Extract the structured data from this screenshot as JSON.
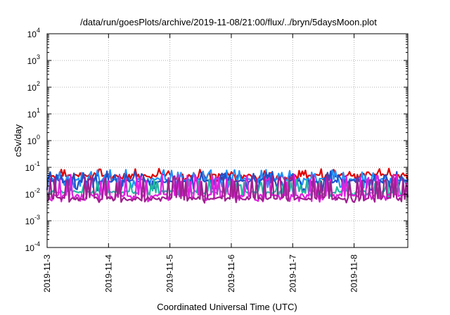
{
  "chart_data": {
    "type": "line",
    "title": "/data/run/goesPlots/archive/2019-11-08/21:00/flux/../bryn/5daysMoon.plot",
    "xlabel": "Coordinated Universal Time (UTC)",
    "ylabel": "cSv/day",
    "yscale": "log",
    "ylim": [
      0.0001,
      10000
    ],
    "xlim": [
      "2019-11-03T00:00",
      "2019-11-08T21:00"
    ],
    "grid": true,
    "x_ticks": [
      "2019-11-3",
      "2019-11-4",
      "2019-11-5",
      "2019-11-6",
      "2019-11-7",
      "2019-11-8"
    ],
    "y_ticks": [
      {
        "base": "10",
        "exp": "-4",
        "value": 0.0001
      },
      {
        "base": "10",
        "exp": "-3",
        "value": 0.001
      },
      {
        "base": "10",
        "exp": "-2",
        "value": 0.01
      },
      {
        "base": "10",
        "exp": "-1",
        "value": 0.1
      },
      {
        "base": "10",
        "exp": "0",
        "value": 1
      },
      {
        "base": "10",
        "exp": "1",
        "value": 10
      },
      {
        "base": "10",
        "exp": "2",
        "value": 100
      },
      {
        "base": "10",
        "exp": "3",
        "value": 1000
      },
      {
        "base": "10",
        "exp": "4",
        "value": 10000
      }
    ],
    "series": [
      {
        "color": "#e00000",
        "base": 0.05,
        "spike": 0.075,
        "dip": 0.035,
        "seed": 11
      },
      {
        "color": "#1e90ff",
        "base": 0.036,
        "spike": 0.07,
        "dip": 0.02,
        "seed": 23
      },
      {
        "color": "#2050c8",
        "base": 0.03,
        "spike": 0.06,
        "dip": 0.015,
        "seed": 37
      },
      {
        "color": "#20b8a0",
        "base": 0.012,
        "spike": 0.03,
        "dip": 0.009,
        "seed": 41
      },
      {
        "color": "#e020e0",
        "base": 0.009,
        "spike": 0.045,
        "dip": 0.006,
        "seed": 53
      },
      {
        "color": "#a02090",
        "base": 0.007,
        "spike": 0.04,
        "dip": 0.0055,
        "seed": 67
      }
    ]
  }
}
